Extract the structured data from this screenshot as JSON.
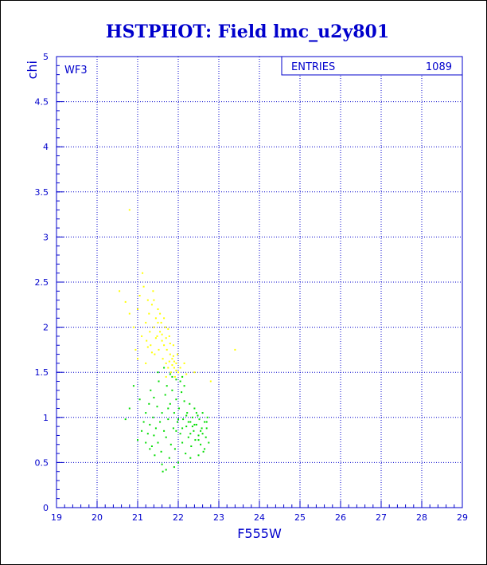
{
  "chart_data": {
    "type": "scatter",
    "title": "HSTPHOT: Field lmc_u2y801",
    "xlabel": "F555W",
    "ylabel": "chi",
    "xlim": [
      19,
      29
    ],
    "ylim": [
      0,
      5
    ],
    "x_ticks": [
      "19",
      "20",
      "21",
      "22",
      "23",
      "24",
      "25",
      "26",
      "27",
      "28",
      "29"
    ],
    "y_ticks": [
      "0",
      "0.5",
      "1",
      "1.5",
      "2",
      "2.5",
      "3",
      "3.5",
      "4",
      "4.5",
      "5"
    ],
    "grid": true,
    "panel_label": "WF3",
    "stats_box": {
      "label": "ENTRIES",
      "value": "1089"
    },
    "colors": {
      "frame": "#000000",
      "axes": "#0000cc",
      "series_bright": "#ffff00",
      "series_faint": "#00dd00"
    },
    "series": [
      {
        "color": "#ffff00",
        "points": [
          [
            20.55,
            2.4
          ],
          [
            20.7,
            2.28
          ],
          [
            20.8,
            2.15
          ],
          [
            20.9,
            2.0
          ],
          [
            20.95,
            1.75
          ],
          [
            21.0,
            2.2
          ],
          [
            21.05,
            2.35
          ],
          [
            21.1,
            1.9
          ],
          [
            21.12,
            2.6
          ],
          [
            21.15,
            2.45
          ],
          [
            21.2,
            2.05
          ],
          [
            21.22,
            1.85
          ],
          [
            21.25,
            2.3
          ],
          [
            21.28,
            2.15
          ],
          [
            21.3,
            1.95
          ],
          [
            21.32,
            1.8
          ],
          [
            21.35,
            2.25
          ],
          [
            21.38,
            2.4
          ],
          [
            21.4,
            2.0
          ],
          [
            21.42,
            1.7
          ],
          [
            21.45,
            2.1
          ],
          [
            21.48,
            1.9
          ],
          [
            21.5,
            2.2
          ],
          [
            21.52,
            1.75
          ],
          [
            21.55,
            1.95
          ],
          [
            21.58,
            2.05
          ],
          [
            21.6,
            1.85
          ],
          [
            21.62,
            1.65
          ],
          [
            21.65,
            1.8
          ],
          [
            21.68,
            2.0
          ],
          [
            21.7,
            1.6
          ],
          [
            21.72,
            1.75
          ],
          [
            21.75,
            1.55
          ],
          [
            21.78,
            1.9
          ],
          [
            21.8,
            1.7
          ],
          [
            21.82,
            1.5
          ],
          [
            21.85,
            1.65
          ],
          [
            21.88,
            1.8
          ],
          [
            21.9,
            1.55
          ],
          [
            21.92,
            1.45
          ],
          [
            21.95,
            1.6
          ],
          [
            21.98,
            1.7
          ],
          [
            22.0,
            1.5
          ],
          [
            22.05,
            1.55
          ],
          [
            22.1,
            1.45
          ],
          [
            22.15,
            1.6
          ],
          [
            22.2,
            1.48
          ],
          [
            21.4,
            2.3
          ],
          [
            21.5,
            2.05
          ],
          [
            21.6,
            1.92
          ],
          [
            21.7,
            1.88
          ],
          [
            21.8,
            1.82
          ],
          [
            21.85,
            1.58
          ],
          [
            21.9,
            1.62
          ],
          [
            21.95,
            1.52
          ],
          [
            21.55,
            2.15
          ],
          [
            21.45,
            1.88
          ],
          [
            21.35,
            1.72
          ],
          [
            21.65,
            2.1
          ],
          [
            21.75,
            1.98
          ],
          [
            22.4,
            1.5
          ],
          [
            22.8,
            1.4
          ],
          [
            23.4,
            1.75
          ],
          [
            20.8,
            3.3
          ],
          [
            21.0,
            1.65
          ],
          [
            21.2,
            1.6
          ],
          [
            21.25,
            1.78
          ],
          [
            21.7,
            1.45
          ],
          [
            21.78,
            1.62
          ],
          [
            21.88,
            1.68
          ]
        ]
      },
      {
        "color": "#00dd00",
        "points": [
          [
            20.7,
            0.98
          ],
          [
            20.8,
            1.1
          ],
          [
            20.9,
            1.35
          ],
          [
            21.0,
            0.75
          ],
          [
            21.05,
            1.2
          ],
          [
            21.1,
            0.85
          ],
          [
            21.15,
            0.95
          ],
          [
            21.2,
            1.05
          ],
          [
            21.25,
            0.82
          ],
          [
            21.28,
            1.15
          ],
          [
            21.3,
            0.92
          ],
          [
            21.32,
            1.3
          ],
          [
            21.35,
            0.68
          ],
          [
            21.38,
            1.0
          ],
          [
            21.4,
            1.22
          ],
          [
            21.42,
            0.58
          ],
          [
            21.45,
            0.88
          ],
          [
            21.48,
            1.12
          ],
          [
            21.5,
            0.72
          ],
          [
            21.52,
            1.4
          ],
          [
            21.55,
            0.95
          ],
          [
            21.58,
            0.62
          ],
          [
            21.6,
            1.05
          ],
          [
            21.62,
            0.4
          ],
          [
            21.65,
            0.85
          ],
          [
            21.68,
            1.25
          ],
          [
            21.7,
            0.78
          ],
          [
            21.72,
            1.35
          ],
          [
            21.75,
            0.98
          ],
          [
            21.78,
            0.55
          ],
          [
            21.8,
            1.15
          ],
          [
            21.82,
            0.7
          ],
          [
            21.85,
            1.3
          ],
          [
            21.88,
            0.88
          ],
          [
            21.9,
            1.05
          ],
          [
            21.92,
            0.65
          ],
          [
            21.95,
            1.2
          ],
          [
            21.98,
            0.95
          ],
          [
            22.0,
            0.5
          ],
          [
            22.02,
            1.1
          ],
          [
            22.05,
            0.82
          ],
          [
            22.08,
            1.28
          ],
          [
            22.1,
            0.72
          ],
          [
            22.12,
            0.98
          ],
          [
            22.15,
            1.18
          ],
          [
            22.18,
            0.6
          ],
          [
            22.2,
            0.9
          ],
          [
            22.22,
            1.05
          ],
          [
            22.25,
            0.78
          ],
          [
            22.28,
            1.15
          ],
          [
            22.3,
            0.95
          ],
          [
            22.32,
            0.68
          ],
          [
            22.35,
            1.0
          ],
          [
            22.38,
            0.85
          ],
          [
            22.4,
            1.1
          ],
          [
            22.42,
            0.75
          ],
          [
            22.45,
            0.92
          ],
          [
            22.48,
            1.02
          ],
          [
            22.5,
            0.8
          ],
          [
            22.52,
            0.98
          ],
          [
            22.55,
            0.7
          ],
          [
            22.58,
            0.88
          ],
          [
            22.6,
            1.05
          ],
          [
            22.62,
            0.62
          ],
          [
            22.65,
            0.95
          ],
          [
            22.68,
            0.78
          ],
          [
            22.7,
            0.88
          ],
          [
            22.72,
            1.0
          ],
          [
            22.75,
            0.72
          ],
          [
            21.95,
            0.85
          ],
          [
            22.05,
            1.4
          ],
          [
            21.85,
            1.45
          ],
          [
            22.15,
            1.35
          ],
          [
            21.75,
            1.1
          ],
          [
            22.25,
            0.95
          ],
          [
            22.35,
            0.9
          ],
          [
            22.45,
            1.05
          ],
          [
            22.55,
            0.85
          ],
          [
            22.0,
            0.98
          ],
          [
            22.1,
            0.88
          ],
          [
            22.2,
            1.02
          ],
          [
            22.3,
            0.82
          ],
          [
            22.4,
            0.92
          ],
          [
            22.5,
            0.75
          ],
          [
            22.6,
            0.82
          ],
          [
            21.6,
            0.48
          ],
          [
            21.7,
            0.42
          ],
          [
            21.9,
            0.45
          ],
          [
            22.3,
            0.55
          ],
          [
            22.5,
            0.58
          ],
          [
            22.65,
            0.65
          ],
          [
            22.7,
            0.95
          ],
          [
            21.5,
            1.5
          ],
          [
            21.65,
            1.55
          ],
          [
            21.8,
            1.48
          ],
          [
            21.95,
            1.42
          ],
          [
            22.1,
            1.45
          ],
          [
            21.4,
            0.8
          ],
          [
            21.3,
            0.65
          ],
          [
            21.2,
            0.72
          ]
        ]
      }
    ]
  }
}
